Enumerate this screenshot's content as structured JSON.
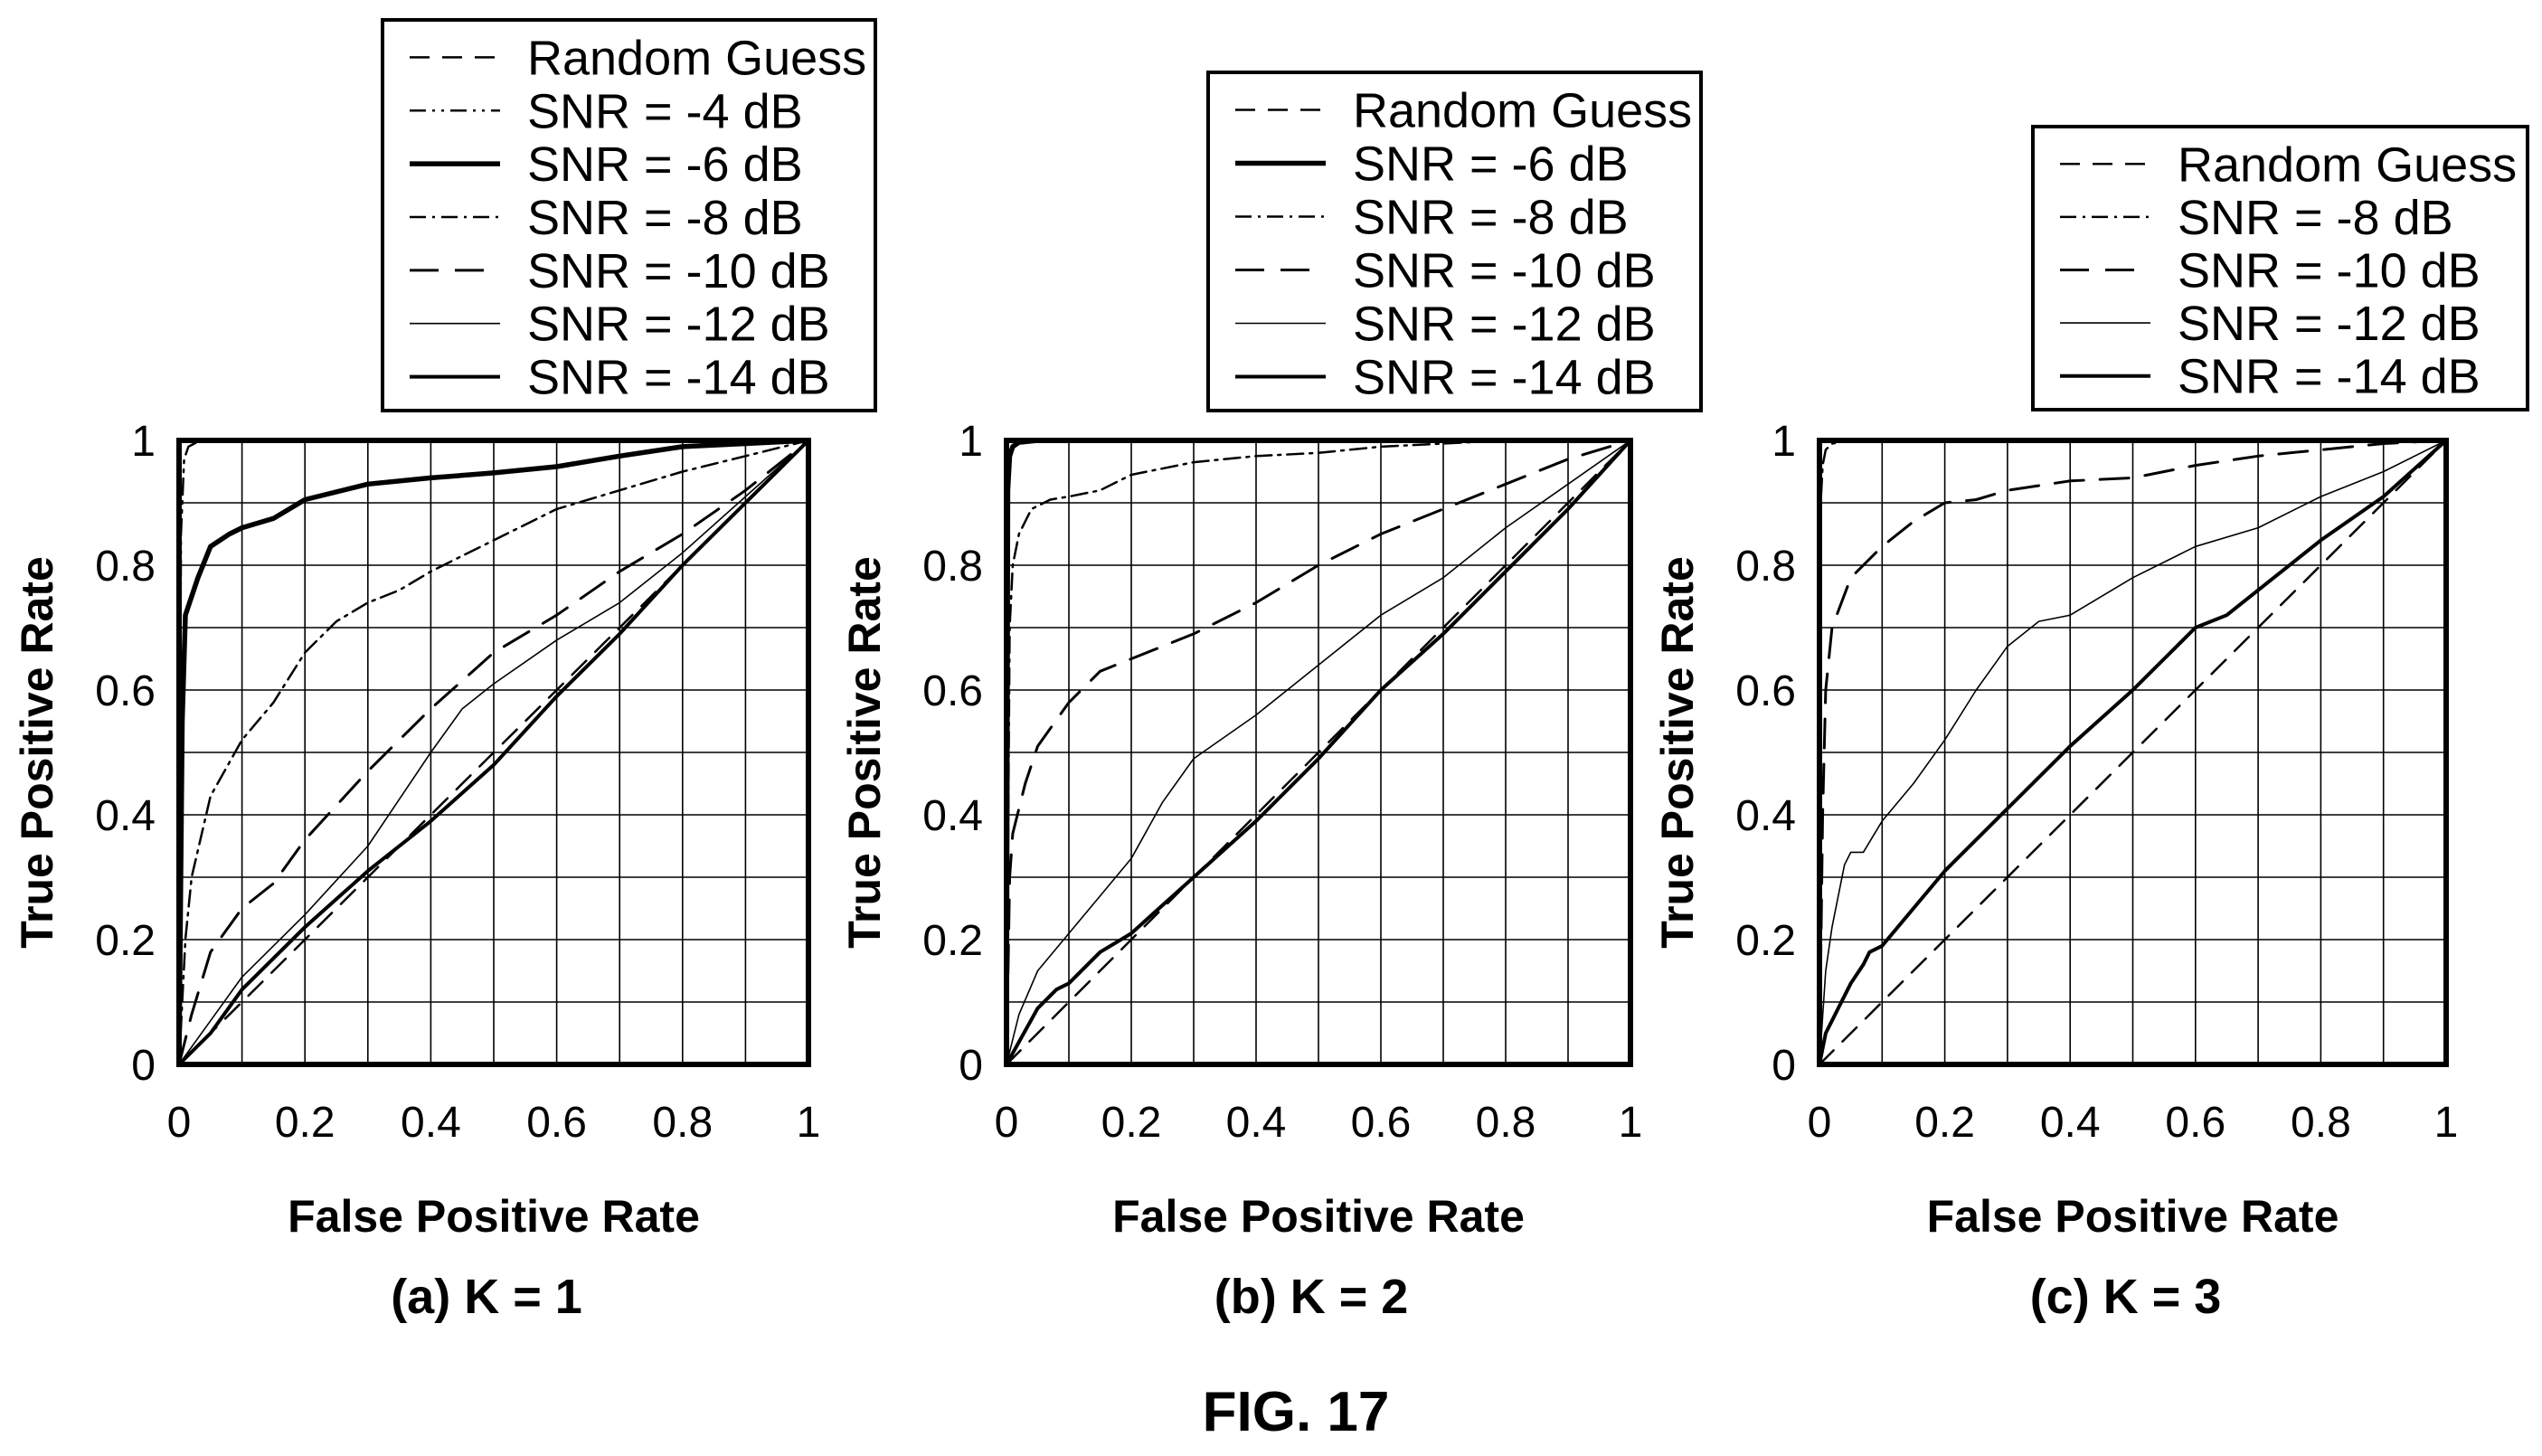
{
  "figure_title": "FIG. 17",
  "styles": {
    "Random Guess": {
      "dash": "22 14",
      "width": 2.5
    },
    "SNR = -4 dB": {
      "dash": "18 7 3 7 3 7",
      "width": 2.5
    },
    "SNR = -6 dB": {
      "dash": "",
      "width": 5.5
    },
    "SNR = -8 dB": {
      "dash": "18 7 3 7",
      "width": 2.5
    },
    "SNR = -10 dB": {
      "dash": "32 18",
      "width": 3
    },
    "SNR = -12 dB": {
      "dash": "",
      "width": 1.6
    },
    "SNR = -14 dB": {
      "dash": "",
      "width": 4
    }
  },
  "chart_data": [
    {
      "type": "line",
      "caption": "(a) K = 1",
      "xlabel": "False Positive Rate",
      "ylabel": "True Positive Rate",
      "xlim": [
        0,
        1
      ],
      "ylim": [
        0,
        1
      ],
      "xticks": [
        "0",
        "0.2",
        "0.4",
        "0.6",
        "0.8",
        "1"
      ],
      "yticks": [
        "0",
        "0.2",
        "0.4",
        "0.6",
        "0.8",
        "1"
      ],
      "grid": true,
      "legend_position": "above-plot",
      "series": [
        {
          "name": "Random Guess",
          "x": [
            0,
            1
          ],
          "y": [
            0,
            1
          ]
        },
        {
          "name": "SNR = -4 dB",
          "x": [
            0,
            0.003,
            0.008,
            0.015,
            0.03,
            0.1,
            0.3,
            0.6,
            1
          ],
          "y": [
            0,
            0.85,
            0.97,
            0.99,
            0.998,
            1,
            1,
            1,
            1
          ]
        },
        {
          "name": "SNR = -6 dB",
          "x": [
            0,
            0.005,
            0.01,
            0.03,
            0.05,
            0.08,
            0.1,
            0.15,
            0.2,
            0.3,
            0.4,
            0.5,
            0.6,
            0.7,
            0.8,
            0.9,
            1
          ],
          "y": [
            0,
            0.55,
            0.72,
            0.78,
            0.83,
            0.85,
            0.86,
            0.875,
            0.905,
            0.93,
            0.94,
            0.948,
            0.958,
            0.975,
            0.99,
            0.995,
            1
          ]
        },
        {
          "name": "SNR = -8 dB",
          "x": [
            0,
            0.01,
            0.02,
            0.05,
            0.1,
            0.15,
            0.2,
            0.25,
            0.3,
            0.35,
            0.4,
            0.5,
            0.6,
            0.7,
            0.8,
            0.9,
            1
          ],
          "y": [
            0,
            0.2,
            0.3,
            0.43,
            0.52,
            0.58,
            0.66,
            0.71,
            0.74,
            0.76,
            0.79,
            0.84,
            0.89,
            0.92,
            0.95,
            0.975,
            1
          ]
        },
        {
          "name": "SNR = -10 dB",
          "x": [
            0,
            0.02,
            0.05,
            0.1,
            0.15,
            0.2,
            0.3,
            0.4,
            0.5,
            0.6,
            0.7,
            0.8,
            0.9,
            1
          ],
          "y": [
            0,
            0.08,
            0.18,
            0.25,
            0.29,
            0.36,
            0.47,
            0.57,
            0.66,
            0.72,
            0.79,
            0.85,
            0.92,
            1
          ]
        },
        {
          "name": "SNR = -12 dB",
          "x": [
            0,
            0.05,
            0.1,
            0.15,
            0.2,
            0.3,
            0.4,
            0.45,
            0.5,
            0.6,
            0.7,
            0.8,
            0.9,
            1
          ],
          "y": [
            0,
            0.07,
            0.14,
            0.19,
            0.24,
            0.35,
            0.5,
            0.57,
            0.61,
            0.68,
            0.74,
            0.82,
            0.91,
            1
          ]
        },
        {
          "name": "SNR = -14 dB",
          "x": [
            0,
            0.05,
            0.1,
            0.15,
            0.2,
            0.3,
            0.4,
            0.5,
            0.6,
            0.7,
            0.8,
            0.9,
            1
          ],
          "y": [
            0,
            0.05,
            0.12,
            0.17,
            0.22,
            0.31,
            0.39,
            0.48,
            0.59,
            0.69,
            0.8,
            0.9,
            1
          ]
        }
      ]
    },
    {
      "type": "line",
      "caption": "(b) K = 2",
      "xlabel": "False Positive Rate",
      "ylabel": "True Positive Rate",
      "xlim": [
        0,
        1
      ],
      "ylim": [
        0,
        1
      ],
      "xticks": [
        "0",
        "0.2",
        "0.4",
        "0.6",
        "0.8",
        "1"
      ],
      "yticks": [
        "0",
        "0.2",
        "0.4",
        "0.6",
        "0.8",
        "1"
      ],
      "grid": true,
      "legend_position": "above-plot",
      "series": [
        {
          "name": "Random Guess",
          "x": [
            0,
            1
          ],
          "y": [
            0,
            1
          ]
        },
        {
          "name": "SNR = -6 dB",
          "x": [
            0,
            0.002,
            0.005,
            0.01,
            0.02,
            0.05,
            0.1,
            0.3,
            0.6,
            1
          ],
          "y": [
            0,
            0.92,
            0.975,
            0.99,
            0.997,
            1,
            1,
            1,
            1,
            1
          ]
        },
        {
          "name": "SNR = -8 dB",
          "x": [
            0,
            0.005,
            0.01,
            0.02,
            0.04,
            0.07,
            0.1,
            0.15,
            0.2,
            0.3,
            0.4,
            0.5,
            0.6,
            0.7,
            0.8,
            0.9,
            1
          ],
          "y": [
            0,
            0.7,
            0.8,
            0.85,
            0.89,
            0.905,
            0.91,
            0.92,
            0.945,
            0.965,
            0.975,
            0.98,
            0.99,
            0.995,
            1,
            1,
            1
          ]
        },
        {
          "name": "SNR = -10 dB",
          "x": [
            0,
            0.005,
            0.01,
            0.03,
            0.05,
            0.1,
            0.15,
            0.2,
            0.3,
            0.4,
            0.5,
            0.6,
            0.7,
            0.8,
            0.9,
            1
          ],
          "y": [
            0,
            0.3,
            0.37,
            0.45,
            0.51,
            0.58,
            0.63,
            0.65,
            0.69,
            0.74,
            0.8,
            0.85,
            0.89,
            0.93,
            0.97,
            1
          ]
        },
        {
          "name": "SNR = -12 dB",
          "x": [
            0,
            0.02,
            0.05,
            0.1,
            0.15,
            0.2,
            0.25,
            0.3,
            0.4,
            0.5,
            0.6,
            0.7,
            0.8,
            0.9,
            1
          ],
          "y": [
            0,
            0.08,
            0.15,
            0.21,
            0.27,
            0.33,
            0.42,
            0.49,
            0.56,
            0.64,
            0.72,
            0.78,
            0.86,
            0.93,
            1
          ]
        },
        {
          "name": "SNR = -14 dB",
          "x": [
            0,
            0.05,
            0.08,
            0.1,
            0.15,
            0.2,
            0.3,
            0.4,
            0.5,
            0.6,
            0.7,
            0.8,
            0.9,
            1
          ],
          "y": [
            0,
            0.09,
            0.12,
            0.13,
            0.18,
            0.21,
            0.3,
            0.39,
            0.49,
            0.6,
            0.69,
            0.79,
            0.89,
            1
          ]
        }
      ]
    },
    {
      "type": "line",
      "caption": "(c) K = 3",
      "xlabel": "False Positive Rate",
      "ylabel": "True Positive Rate",
      "xlim": [
        0,
        1
      ],
      "ylim": [
        0,
        1
      ],
      "xticks": [
        "0",
        "0.2",
        "0.4",
        "0.6",
        "0.8",
        "1"
      ],
      "yticks": [
        "0",
        "0.2",
        "0.4",
        "0.6",
        "0.8",
        "1"
      ],
      "grid": true,
      "legend_position": "above-plot",
      "series": [
        {
          "name": "Random Guess",
          "x": [
            0,
            1
          ],
          "y": [
            0,
            1
          ]
        },
        {
          "name": "SNR = -8 dB",
          "x": [
            0,
            0.002,
            0.005,
            0.01,
            0.02,
            0.05,
            0.1,
            0.3,
            0.6,
            1
          ],
          "y": [
            0,
            0.9,
            0.96,
            0.985,
            0.995,
            1,
            1,
            1,
            1,
            1
          ]
        },
        {
          "name": "SNR = -10 dB",
          "x": [
            0,
            0.005,
            0.01,
            0.02,
            0.05,
            0.1,
            0.15,
            0.2,
            0.25,
            0.3,
            0.4,
            0.5,
            0.6,
            0.7,
            0.8,
            0.9,
            1
          ],
          "y": [
            0,
            0.4,
            0.6,
            0.7,
            0.78,
            0.83,
            0.87,
            0.9,
            0.905,
            0.92,
            0.935,
            0.94,
            0.96,
            0.975,
            0.985,
            0.995,
            1
          ]
        },
        {
          "name": "SNR = -12 dB",
          "x": [
            0,
            0.01,
            0.02,
            0.04,
            0.05,
            0.07,
            0.1,
            0.15,
            0.2,
            0.25,
            0.3,
            0.35,
            0.4,
            0.5,
            0.6,
            0.7,
            0.8,
            0.9,
            1
          ],
          "y": [
            0,
            0.15,
            0.22,
            0.32,
            0.34,
            0.34,
            0.39,
            0.45,
            0.52,
            0.6,
            0.67,
            0.71,
            0.72,
            0.78,
            0.83,
            0.86,
            0.91,
            0.95,
            1
          ]
        },
        {
          "name": "SNR = -14 dB",
          "x": [
            0,
            0.01,
            0.03,
            0.05,
            0.07,
            0.08,
            0.1,
            0.15,
            0.2,
            0.3,
            0.4,
            0.5,
            0.55,
            0.6,
            0.65,
            0.7,
            0.8,
            0.9,
            1
          ],
          "y": [
            0,
            0.05,
            0.09,
            0.13,
            0.16,
            0.18,
            0.19,
            0.25,
            0.31,
            0.41,
            0.51,
            0.6,
            0.65,
            0.7,
            0.72,
            0.76,
            0.84,
            0.91,
            1
          ]
        }
      ]
    }
  ]
}
